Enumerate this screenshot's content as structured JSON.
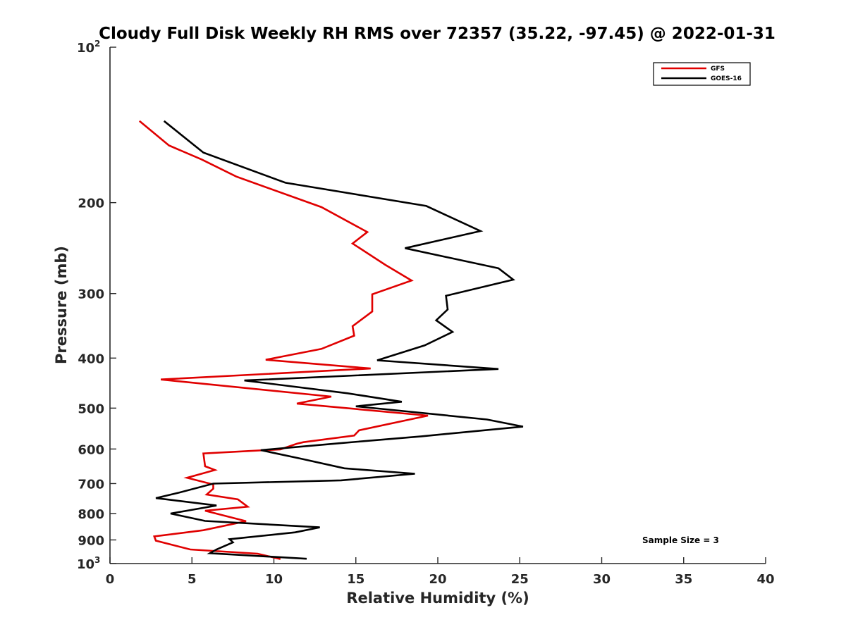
{
  "chart_data": {
    "type": "line",
    "title": "Cloudy Full Disk Weekly RH RMS over 72357 (35.22, -97.45) @ 2022-01-31",
    "xlabel": "Relative Humidity (%)",
    "ylabel": "Pressure (mb)",
    "xlim": [
      0,
      40
    ],
    "ylim": [
      100,
      1000
    ],
    "y_scale": "log",
    "y_reversed": true,
    "grid": false,
    "legend_position": "top-right",
    "x_ticks": [
      "0",
      "5",
      "10",
      "15",
      "20",
      "25",
      "30",
      "35",
      "40"
    ],
    "y_ticks": [
      {
        "value": 100,
        "base": "10",
        "sup": "2"
      },
      {
        "value": 200,
        "label": "200"
      },
      {
        "value": 300,
        "label": "300"
      },
      {
        "value": 400,
        "label": "400"
      },
      {
        "value": 500,
        "label": "500"
      },
      {
        "value": 600,
        "label": "600"
      },
      {
        "value": 700,
        "label": "700"
      },
      {
        "value": 800,
        "label": "800"
      },
      {
        "value": 900,
        "label": "900"
      },
      {
        "value": 1000,
        "base": "10",
        "sup": "3"
      }
    ],
    "series": [
      {
        "name": "GFS",
        "color": "#e00000",
        "points": [
          [
            1.8,
            139
          ],
          [
            3.6,
            155
          ],
          [
            5.6,
            165
          ],
          [
            7.7,
            178
          ],
          [
            12.9,
            204
          ],
          [
            15.7,
            228
          ],
          [
            14.8,
            240
          ],
          [
            16.8,
            264
          ],
          [
            18.4,
            283
          ],
          [
            16.0,
            301
          ],
          [
            16.0,
            325
          ],
          [
            14.8,
            347
          ],
          [
            14.9,
            362
          ],
          [
            12.9,
            384
          ],
          [
            9.5,
            403
          ],
          [
            15.9,
            419
          ],
          [
            3.1,
            440
          ],
          [
            13.5,
            475
          ],
          [
            11.4,
            490
          ],
          [
            19.4,
            517
          ],
          [
            15.2,
            552
          ],
          [
            14.9,
            565
          ],
          [
            11.8,
            582
          ],
          [
            11.4,
            586
          ],
          [
            10.4,
            601
          ],
          [
            5.7,
            612
          ],
          [
            5.8,
            648
          ],
          [
            6.4,
            659
          ],
          [
            4.7,
            682
          ],
          [
            6.3,
            703
          ],
          [
            6.3,
            716
          ],
          [
            5.9,
            735
          ],
          [
            7.8,
            751
          ],
          [
            8.4,
            776
          ],
          [
            5.8,
            790
          ],
          [
            8.3,
            828
          ],
          [
            5.7,
            862
          ],
          [
            2.7,
            886
          ],
          [
            2.8,
            903
          ],
          [
            4.9,
            939
          ],
          [
            9.0,
            957
          ],
          [
            10.4,
            980
          ]
        ]
      },
      {
        "name": "GOES-16",
        "color": "#000000",
        "points": [
          [
            3.3,
            139
          ],
          [
            5.7,
            160
          ],
          [
            10.7,
            183
          ],
          [
            19.3,
            203
          ],
          [
            22.6,
            227
          ],
          [
            18.0,
            245
          ],
          [
            23.7,
            268
          ],
          [
            24.6,
            282
          ],
          [
            20.5,
            303
          ],
          [
            20.6,
            322
          ],
          [
            19.9,
            338
          ],
          [
            20.9,
            356
          ],
          [
            19.2,
            378
          ],
          [
            16.3,
            404
          ],
          [
            23.7,
            420
          ],
          [
            8.2,
            442
          ],
          [
            14.5,
            468
          ],
          [
            17.8,
            486
          ],
          [
            15.0,
            496
          ],
          [
            23.0,
            526
          ],
          [
            25.2,
            543
          ],
          [
            19.0,
            567
          ],
          [
            14.2,
            584
          ],
          [
            9.2,
            603
          ],
          [
            11.7,
            627
          ],
          [
            14.3,
            654
          ],
          [
            18.6,
            670
          ],
          [
            14.1,
            690
          ],
          [
            6.3,
            700
          ],
          [
            4.2,
            729
          ],
          [
            2.8,
            747
          ],
          [
            6.5,
            772
          ],
          [
            3.7,
            800
          ],
          [
            5.8,
            827
          ],
          [
            12.8,
            851
          ],
          [
            11.3,
            870
          ],
          [
            7.3,
            897
          ],
          [
            7.5,
            910
          ],
          [
            6.5,
            939
          ],
          [
            6.1,
            955
          ],
          [
            12.0,
            979
          ]
        ]
      }
    ],
    "annotations": [
      "Sample Size = 3"
    ]
  }
}
